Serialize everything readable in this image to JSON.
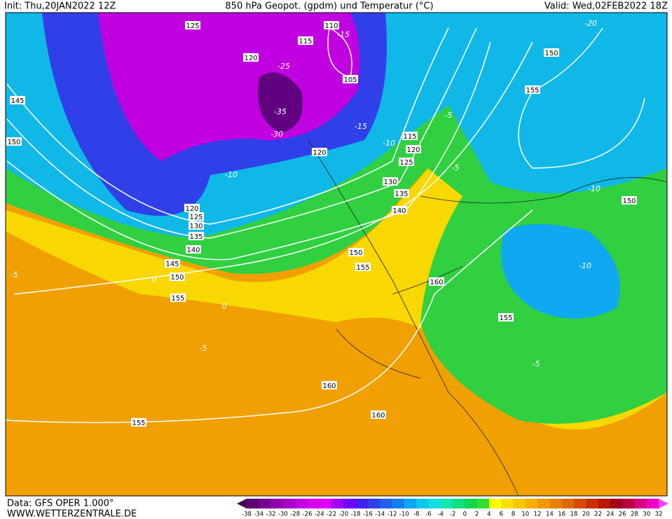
{
  "header": {
    "init": "Init: Thu,20JAN2022 12Z",
    "title": "850 hPa Geopot. (gpdm) und Temperatur (°C)",
    "valid": "Valid: Wed,02FEB2022 18Z"
  },
  "map": {
    "geopotential_labels": [
      125,
      110,
      115,
      120,
      105,
      145,
      150,
      115,
      120,
      120,
      125,
      130,
      135,
      140,
      120,
      125,
      130,
      135,
      140,
      145,
      150,
      155,
      150,
      155,
      160,
      150,
      155,
      150,
      155,
      160,
      160,
      155
    ],
    "temperature_labels": [
      -25,
      -15,
      -35,
      -30,
      -15,
      -10,
      -10,
      -5,
      -5,
      -10,
      -10,
      0,
      -5,
      0,
      -5,
      -5,
      -20
    ]
  },
  "colorbar": {
    "ticks": [
      -38,
      -34,
      -32,
      -30,
      -28,
      -26,
      -24,
      -22,
      -20,
      -18,
      -16,
      -14,
      -12,
      -10,
      -8,
      -6,
      -4,
      -2,
      0,
      2,
      4,
      6,
      8,
      10,
      12,
      14,
      16,
      18,
      20,
      22,
      24,
      26,
      28,
      30,
      32
    ],
    "colors": [
      "#4a0050",
      "#5e0070",
      "#780090",
      "#9000b0",
      "#a800c8",
      "#c000e0",
      "#d800f0",
      "#e000ff",
      "#a000ff",
      "#7000ff",
      "#4020f0",
      "#3040e8",
      "#2060f0",
      "#1080f0",
      "#10a8f0",
      "#10c8f0",
      "#10e0e0",
      "#10e8b0",
      "#10e080",
      "#10d850",
      "#30e030",
      "#ffff00",
      "#f8e000",
      "#f8c800",
      "#f8b000",
      "#f09800",
      "#e88000",
      "#e06800",
      "#d84800",
      "#c83000",
      "#b81800",
      "#a00018",
      "#b80040",
      "#d80080",
      "#f000c0",
      "#ff40ff"
    ]
  },
  "footer": {
    "source": "Data: GFS OPER 1.000°",
    "website": "WWW.WETTERZENTRALE.DE"
  }
}
